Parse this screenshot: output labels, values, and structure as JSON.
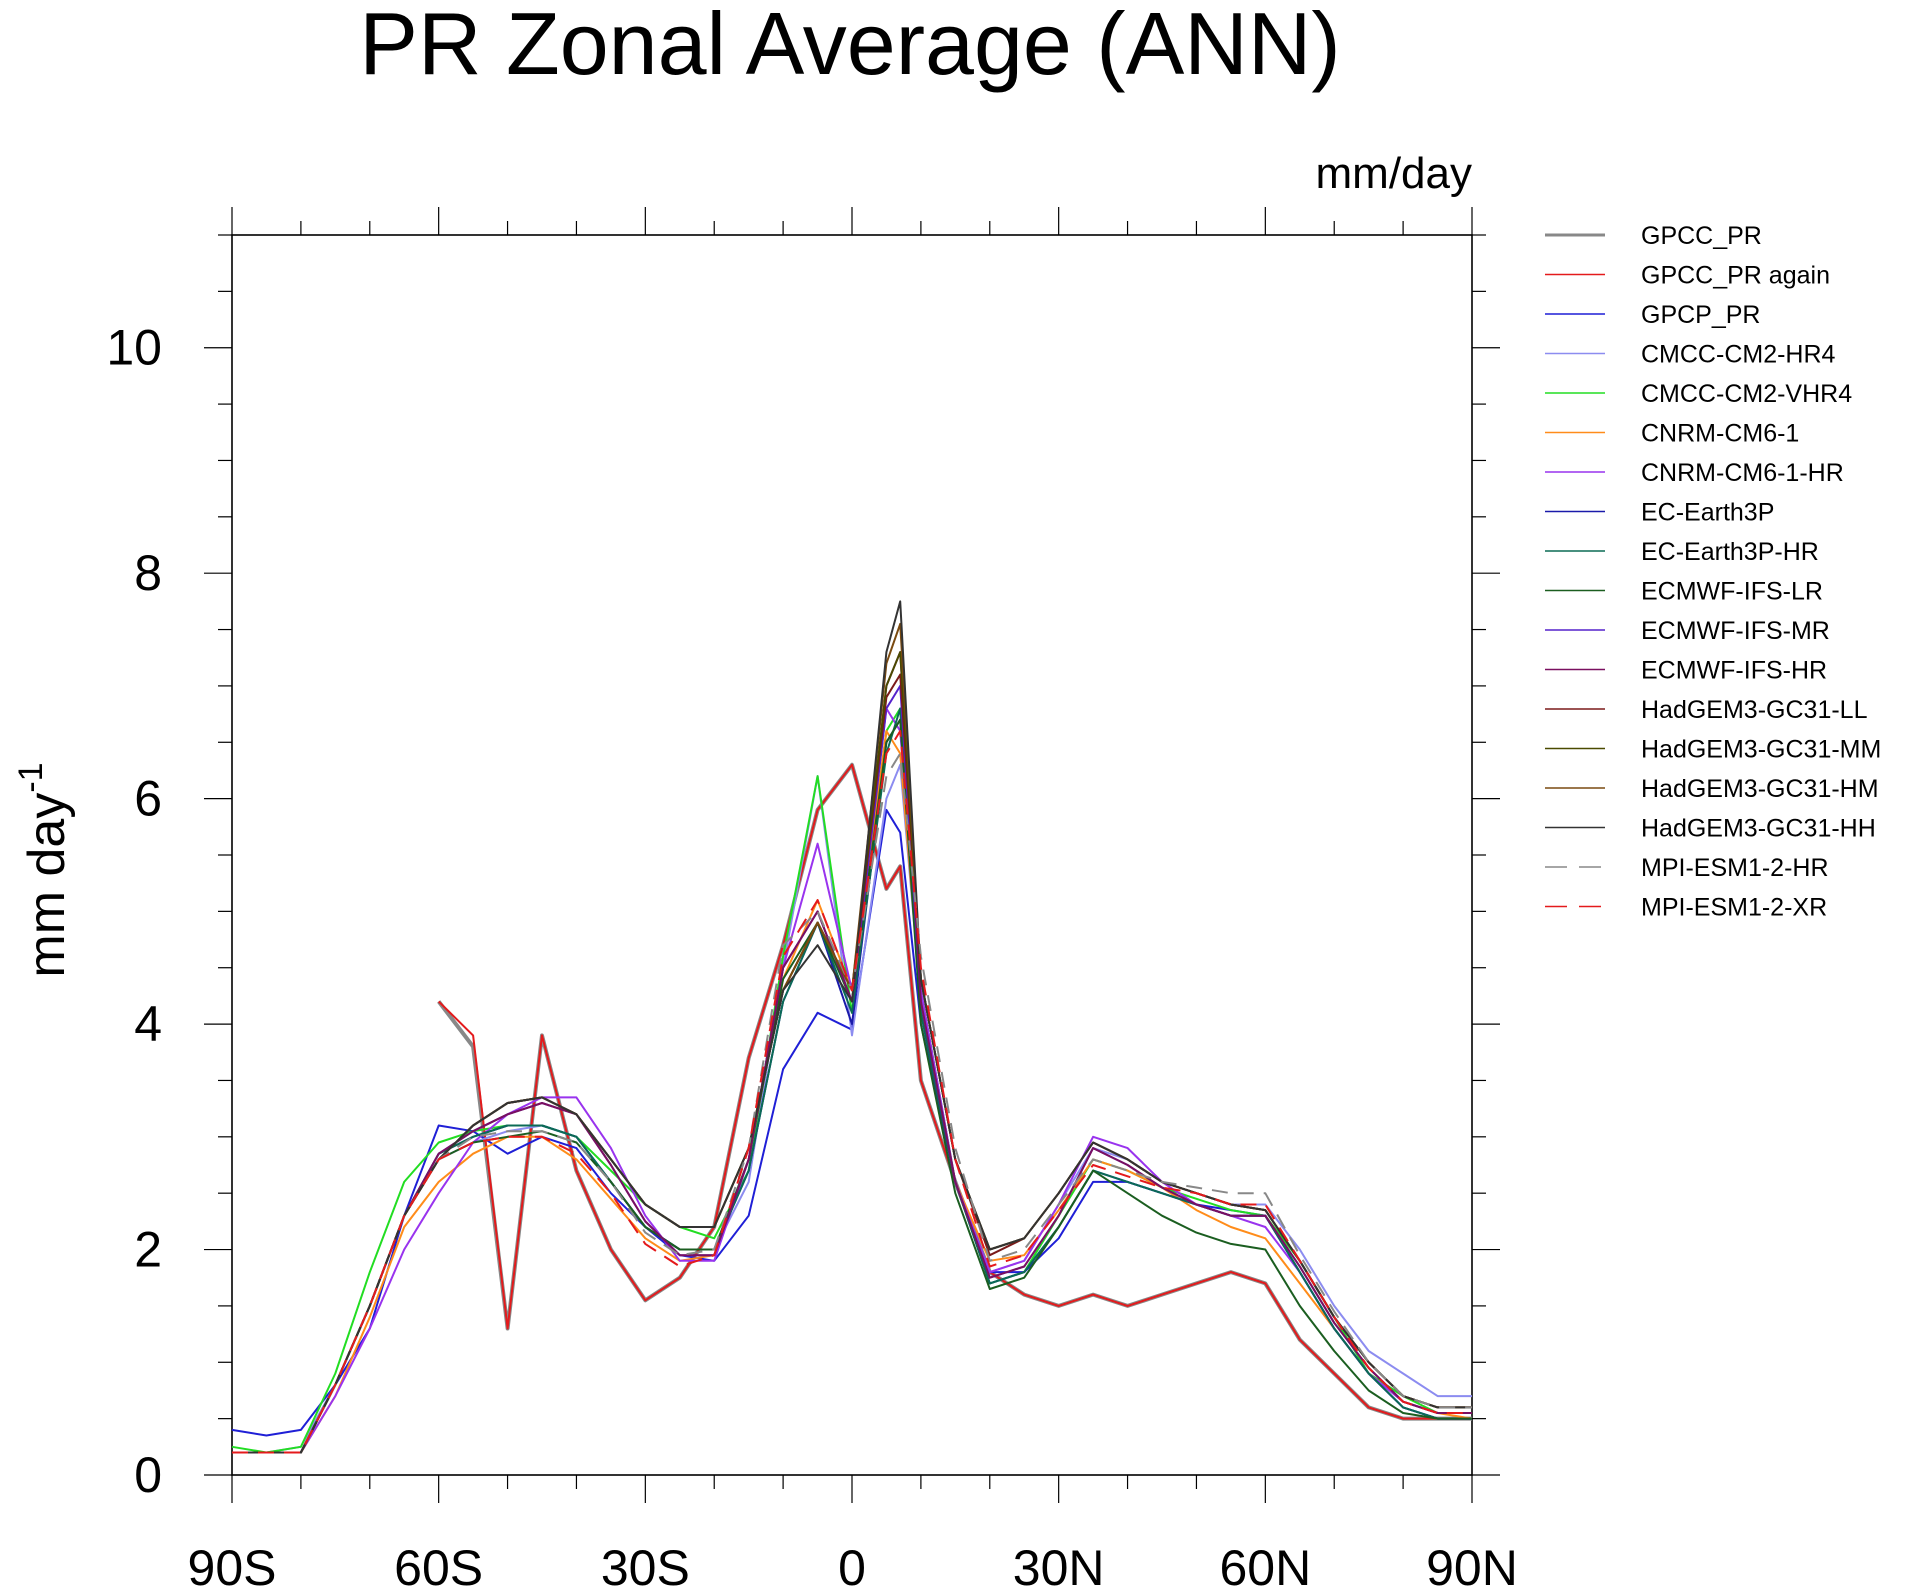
{
  "chart_data": {
    "type": "line",
    "title": "PR Zonal Average (ANN)",
    "units_label": "mm/day",
    "ylabel": "mm day",
    "ylabel_superscript": "-1",
    "xlabel": "",
    "xlim": [
      -90,
      90
    ],
    "ylim": [
      0,
      11
    ],
    "x_ticks": [
      -90,
      -60,
      -30,
      0,
      30,
      60,
      90
    ],
    "x_tick_labels": [
      "90S",
      "60S",
      "30S",
      "0",
      "30N",
      "60N",
      "90N"
    ],
    "y_ticks": [
      0,
      2,
      4,
      6,
      8,
      10
    ],
    "y_tick_labels": [
      "0",
      "2",
      "4",
      "6",
      "8",
      "10"
    ],
    "grid": false,
    "legend_position": "right",
    "x": [
      -90,
      -85,
      -80,
      -75,
      -70,
      -65,
      -60,
      -55,
      -50,
      -45,
      -40,
      -35,
      -30,
      -25,
      -20,
      -15,
      -10,
      -5,
      0,
      5,
      7,
      10,
      15,
      20,
      25,
      30,
      35,
      40,
      45,
      50,
      55,
      60,
      65,
      70,
      75,
      80,
      85,
      90
    ],
    "series": [
      {
        "name": "GPCC_PR",
        "color": "#888888",
        "dash": false,
        "width": 4,
        "values": [
          null,
          null,
          null,
          null,
          null,
          null,
          4.2,
          3.8,
          1.3,
          3.9,
          2.7,
          2.0,
          1.55,
          1.75,
          2.2,
          3.7,
          4.7,
          5.9,
          6.3,
          5.2,
          5.4,
          3.5,
          2.6,
          1.8,
          1.6,
          1.5,
          1.6,
          1.5,
          1.6,
          1.7,
          1.8,
          1.7,
          1.2,
          0.9,
          0.6,
          0.5,
          0.5,
          0.5
        ]
      },
      {
        "name": "GPCC_PR again",
        "color": "#e41a1c",
        "dash": false,
        "width": 2,
        "values": [
          null,
          null,
          null,
          null,
          null,
          null,
          4.2,
          3.9,
          1.3,
          3.9,
          2.7,
          2.0,
          1.55,
          1.75,
          2.2,
          3.7,
          4.7,
          5.9,
          6.3,
          5.2,
          5.4,
          3.5,
          2.6,
          1.8,
          1.6,
          1.5,
          1.6,
          1.5,
          1.6,
          1.7,
          1.8,
          1.7,
          1.2,
          0.9,
          0.6,
          0.5,
          0.5,
          0.5
        ]
      },
      {
        "name": "GPCP_PR",
        "color": "#1f1fd6",
        "dash": false,
        "width": 2,
        "values": [
          0.4,
          0.35,
          0.4,
          0.8,
          1.3,
          2.3,
          3.1,
          3.05,
          2.85,
          3.0,
          2.9,
          2.5,
          2.2,
          1.95,
          1.9,
          2.3,
          3.6,
          4.1,
          3.95,
          5.9,
          5.7,
          4.0,
          2.6,
          1.8,
          1.8,
          2.1,
          2.6,
          2.6,
          2.5,
          2.4,
          2.35,
          2.3,
          1.8,
          1.3,
          0.9,
          0.6,
          0.5,
          0.5
        ]
      },
      {
        "name": "CMCC-CM2-HR4",
        "color": "#8c8cf0",
        "dash": false,
        "width": 2,
        "values": [
          0.2,
          0.2,
          0.25,
          0.8,
          1.5,
          2.3,
          2.8,
          2.95,
          3.05,
          3.1,
          3.0,
          2.6,
          2.2,
          2.0,
          2.0,
          2.6,
          4.5,
          6.2,
          3.9,
          6.0,
          6.3,
          4.2,
          2.6,
          1.8,
          1.9,
          2.4,
          2.9,
          2.8,
          2.6,
          2.5,
          2.4,
          2.4,
          2.0,
          1.5,
          1.1,
          0.9,
          0.7,
          0.7
        ]
      },
      {
        "name": "CMCC-CM2-VHR4",
        "color": "#22dd22",
        "dash": false,
        "width": 2,
        "values": [
          0.25,
          0.2,
          0.25,
          0.9,
          1.8,
          2.6,
          2.95,
          3.05,
          3.1,
          3.1,
          3.0,
          2.7,
          2.4,
          2.2,
          2.1,
          2.7,
          4.6,
          6.2,
          4.1,
          6.6,
          6.8,
          4.3,
          2.6,
          1.7,
          1.8,
          2.3,
          2.8,
          2.7,
          2.55,
          2.45,
          2.35,
          2.3,
          1.9,
          1.4,
          0.9,
          0.7,
          0.55,
          0.55
        ]
      },
      {
        "name": "CNRM-CM6-1",
        "color": "#ff8c1a",
        "dash": false,
        "width": 2,
        "values": [
          0.2,
          0.2,
          0.2,
          0.7,
          1.4,
          2.2,
          2.6,
          2.85,
          3.0,
          3.0,
          2.8,
          2.45,
          2.1,
          1.9,
          1.95,
          2.8,
          4.4,
          5.1,
          4.3,
          6.6,
          6.4,
          4.2,
          2.6,
          1.9,
          1.95,
          2.35,
          2.8,
          2.7,
          2.55,
          2.35,
          2.2,
          2.1,
          1.7,
          1.3,
          0.9,
          0.65,
          0.55,
          0.5
        ]
      },
      {
        "name": "CNRM-CM6-1-HR",
        "color": "#9933ee",
        "dash": false,
        "width": 2,
        "values": [
          0.2,
          0.2,
          0.2,
          0.7,
          1.3,
          2.0,
          2.5,
          2.95,
          3.2,
          3.35,
          3.35,
          2.9,
          2.3,
          1.9,
          1.9,
          2.8,
          4.5,
          5.6,
          4.3,
          6.8,
          6.6,
          4.3,
          2.6,
          1.8,
          1.9,
          2.4,
          3.0,
          2.9,
          2.6,
          2.4,
          2.3,
          2.2,
          1.8,
          1.3,
          0.9,
          0.65,
          0.55,
          0.55
        ]
      },
      {
        "name": "EC-Earth3P",
        "color": "#1a1aaa",
        "dash": false,
        "width": 2,
        "values": [
          0.2,
          0.2,
          0.2,
          0.8,
          1.5,
          2.3,
          2.85,
          3.0,
          3.1,
          3.1,
          3.0,
          2.6,
          2.2,
          2.0,
          2.0,
          2.7,
          4.2,
          4.9,
          4.0,
          6.5,
          6.7,
          4.1,
          2.6,
          1.7,
          1.8,
          2.2,
          2.7,
          2.6,
          2.5,
          2.4,
          2.3,
          2.3,
          1.8,
          1.3,
          0.9,
          0.6,
          0.5,
          0.5
        ]
      },
      {
        "name": "EC-Earth3P-HR",
        "color": "#0b6b55",
        "dash": false,
        "width": 2,
        "values": [
          0.2,
          0.2,
          0.2,
          0.8,
          1.5,
          2.3,
          2.85,
          3.0,
          3.1,
          3.1,
          3.0,
          2.6,
          2.2,
          2.0,
          2.0,
          2.7,
          4.2,
          4.9,
          4.1,
          6.4,
          6.8,
          4.1,
          2.6,
          1.7,
          1.8,
          2.2,
          2.7,
          2.6,
          2.5,
          2.4,
          2.3,
          2.3,
          1.8,
          1.3,
          0.9,
          0.6,
          0.5,
          0.5
        ]
      },
      {
        "name": "ECMWF-IFS-LR",
        "color": "#1b5e20",
        "dash": false,
        "width": 2,
        "values": [
          0.2,
          0.2,
          0.2,
          0.8,
          1.5,
          2.3,
          2.8,
          2.95,
          3.0,
          3.05,
          2.95,
          2.6,
          2.2,
          2.0,
          2.0,
          2.8,
          4.4,
          4.9,
          4.2,
          6.5,
          6.7,
          4.0,
          2.5,
          1.65,
          1.75,
          2.2,
          2.7,
          2.5,
          2.3,
          2.15,
          2.05,
          2.0,
          1.5,
          1.1,
          0.75,
          0.55,
          0.5,
          0.5
        ]
      },
      {
        "name": "ECMWF-IFS-MR",
        "color": "#5522cc",
        "dash": false,
        "width": 2,
        "values": [
          0.2,
          0.2,
          0.2,
          0.8,
          1.5,
          2.3,
          2.85,
          3.05,
          3.2,
          3.3,
          3.2,
          2.75,
          2.25,
          1.95,
          1.95,
          2.8,
          4.5,
          5.0,
          4.2,
          6.8,
          7.0,
          4.2,
          2.6,
          1.75,
          1.85,
          2.3,
          2.9,
          2.75,
          2.55,
          2.4,
          2.3,
          2.3,
          1.85,
          1.35,
          0.95,
          0.65,
          0.55,
          0.55
        ]
      },
      {
        "name": "ECMWF-IFS-HR",
        "color": "#7a1060",
        "dash": false,
        "width": 2,
        "values": [
          0.2,
          0.2,
          0.2,
          0.8,
          1.5,
          2.3,
          2.85,
          3.05,
          3.2,
          3.3,
          3.2,
          2.75,
          2.25,
          1.95,
          1.95,
          2.8,
          4.5,
          5.0,
          4.2,
          7.0,
          7.3,
          4.2,
          2.6,
          1.75,
          1.85,
          2.3,
          2.9,
          2.75,
          2.55,
          2.4,
          2.3,
          2.3,
          1.85,
          1.35,
          0.95,
          0.65,
          0.55,
          0.55
        ]
      },
      {
        "name": "HadGEM3-GC31-LL",
        "color": "#7b1a1a",
        "dash": false,
        "width": 2,
        "values": [
          0.2,
          0.2,
          0.2,
          0.8,
          1.5,
          2.3,
          2.8,
          3.1,
          3.3,
          3.35,
          3.2,
          2.8,
          2.4,
          2.2,
          2.2,
          2.9,
          4.3,
          4.9,
          4.3,
          6.9,
          7.1,
          4.4,
          2.8,
          1.95,
          2.1,
          2.5,
          2.95,
          2.8,
          2.6,
          2.5,
          2.4,
          2.35,
          1.9,
          1.4,
          1.0,
          0.7,
          0.6,
          0.6
        ]
      },
      {
        "name": "HadGEM3-GC31-MM",
        "color": "#4a4a00",
        "dash": false,
        "width": 2,
        "values": [
          0.2,
          0.2,
          0.2,
          0.8,
          1.5,
          2.3,
          2.8,
          3.1,
          3.3,
          3.35,
          3.2,
          2.8,
          2.4,
          2.2,
          2.2,
          2.9,
          4.3,
          4.9,
          4.3,
          7.0,
          7.3,
          4.4,
          2.8,
          2.0,
          2.1,
          2.5,
          2.95,
          2.8,
          2.6,
          2.5,
          2.4,
          2.35,
          1.9,
          1.4,
          1.0,
          0.7,
          0.6,
          0.6
        ]
      },
      {
        "name": "HadGEM3-GC31-HM",
        "color": "#7a4a10",
        "dash": false,
        "width": 2,
        "values": [
          0.2,
          0.2,
          0.2,
          0.8,
          1.5,
          2.3,
          2.8,
          3.1,
          3.3,
          3.35,
          3.2,
          2.8,
          2.4,
          2.2,
          2.2,
          2.9,
          4.3,
          4.9,
          4.3,
          7.2,
          7.55,
          4.4,
          2.8,
          2.0,
          2.1,
          2.5,
          2.95,
          2.8,
          2.6,
          2.5,
          2.4,
          2.35,
          1.9,
          1.4,
          1.0,
          0.7,
          0.6,
          0.6
        ]
      },
      {
        "name": "HadGEM3-GC31-HH",
        "color": "#333333",
        "dash": false,
        "width": 2,
        "values": [
          0.2,
          0.2,
          0.2,
          0.8,
          1.5,
          2.3,
          2.8,
          3.1,
          3.3,
          3.35,
          3.2,
          2.8,
          2.4,
          2.2,
          2.2,
          2.9,
          4.3,
          4.7,
          4.2,
          7.3,
          7.75,
          4.4,
          2.8,
          2.0,
          2.1,
          2.5,
          2.95,
          2.8,
          2.6,
          2.5,
          2.4,
          2.35,
          1.9,
          1.4,
          1.0,
          0.7,
          0.6,
          0.6
        ]
      },
      {
        "name": "MPI-ESM1-2-HR",
        "color": "#888888",
        "dash": true,
        "width": 2,
        "values": [
          0.2,
          0.2,
          0.2,
          0.8,
          1.5,
          2.3,
          2.8,
          3.0,
          3.05,
          3.05,
          2.95,
          2.6,
          2.15,
          1.95,
          2.0,
          2.9,
          4.7,
          5.0,
          4.3,
          6.2,
          6.4,
          4.6,
          2.9,
          1.9,
          2.0,
          2.4,
          2.8,
          2.7,
          2.6,
          2.55,
          2.5,
          2.5,
          1.95,
          1.45,
          1.0,
          0.7,
          0.6,
          0.6
        ]
      },
      {
        "name": "MPI-ESM1-2-XR",
        "color": "#e41a1c",
        "dash": true,
        "width": 2,
        "values": [
          0.2,
          0.2,
          0.2,
          0.8,
          1.5,
          2.3,
          2.8,
          2.95,
          3.0,
          3.0,
          2.85,
          2.5,
          2.05,
          1.85,
          1.95,
          2.9,
          4.6,
          5.1,
          4.3,
          6.4,
          6.6,
          4.5,
          2.8,
          1.85,
          1.95,
          2.35,
          2.75,
          2.65,
          2.55,
          2.5,
          2.4,
          2.4,
          1.9,
          1.4,
          0.95,
          0.65,
          0.55,
          0.55
        ]
      }
    ]
  }
}
